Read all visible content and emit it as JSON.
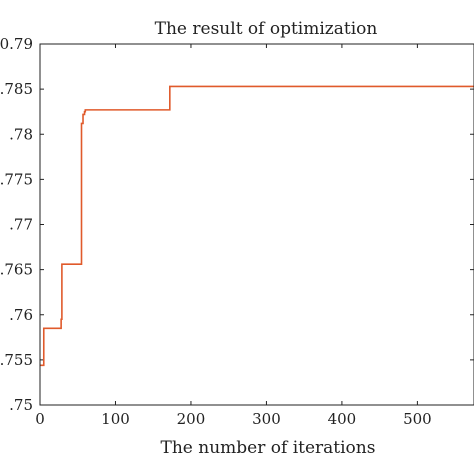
{
  "chart_data": {
    "type": "line",
    "title": "The result of optimization",
    "xlabel": "The number of iterations",
    "ylabel": "",
    "xlim": [
      0,
      575
    ],
    "ylim": [
      0.75,
      0.79
    ],
    "xticks": [
      0,
      100,
      200,
      300,
      400,
      500
    ],
    "xtick_labels": [
      "0",
      "100",
      "200",
      "300",
      "400",
      "500"
    ],
    "yticks": [
      0.75,
      0.755,
      0.76,
      0.765,
      0.77,
      0.775,
      0.78,
      0.785,
      0.79
    ],
    "ytick_labels": [
      ".75",
      ".755",
      ".76",
      ".765",
      ".77",
      ".775",
      ".78",
      ".785",
      "0.79"
    ],
    "grid": false,
    "series": [
      {
        "color": "#e05a2b",
        "x": [
          0,
          5,
          5,
          28,
          28,
          29,
          29,
          55,
          55,
          57,
          57,
          59,
          59,
          60,
          60,
          172,
          172,
          575
        ],
        "y": [
          0.7544,
          0.7544,
          0.7585,
          0.7585,
          0.7595,
          0.7595,
          0.7656,
          0.7656,
          0.7812,
          0.7812,
          0.7822,
          0.7822,
          0.7825,
          0.7825,
          0.7827,
          0.7827,
          0.7853,
          0.7853
        ]
      }
    ]
  }
}
